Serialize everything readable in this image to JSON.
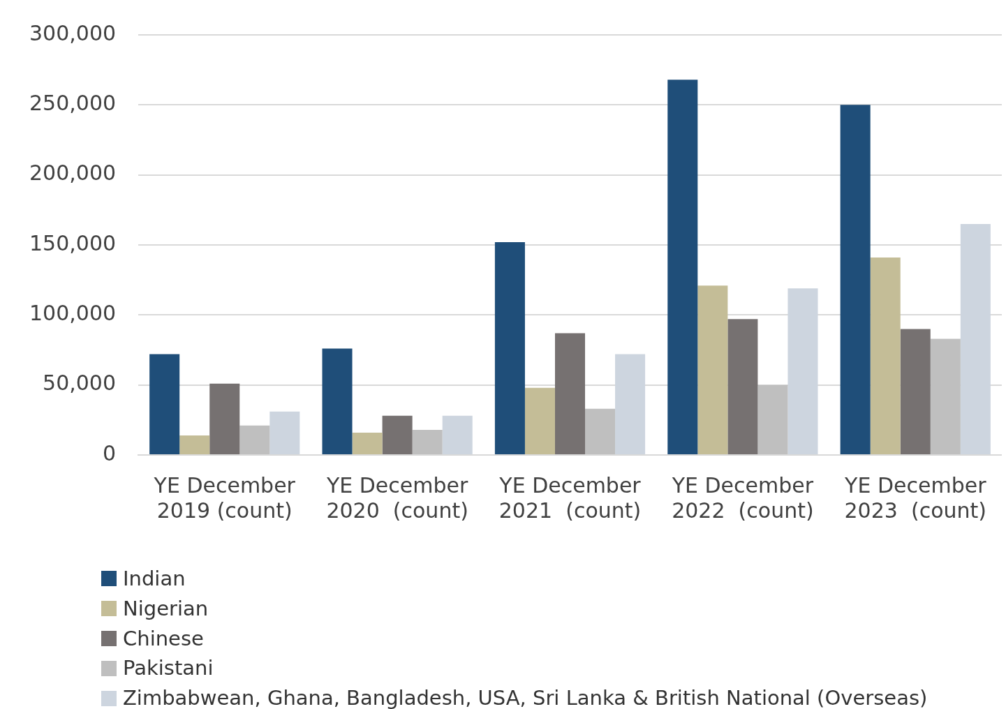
{
  "chart_data": {
    "type": "bar",
    "categories": [
      "YE December 2019 (count)",
      "YE December 2020  (count)",
      "YE December 2021  (count)",
      "YE December 2022  (count)",
      "YE December 2023  (count)"
    ],
    "series": [
      {
        "name": "Indian",
        "color": "#1f4e79",
        "values": [
          72000,
          76000,
          152000,
          268000,
          250000
        ]
      },
      {
        "name": "Nigerian",
        "color": "#c4bd97",
        "values": [
          14000,
          16000,
          48000,
          121000,
          141000
        ]
      },
      {
        "name": "Chinese",
        "color": "#767171",
        "values": [
          51000,
          28000,
          87000,
          97000,
          90000
        ]
      },
      {
        "name": "Pakistani",
        "color": "#bfbfbf",
        "values": [
          21000,
          18000,
          33000,
          50000,
          83000
        ]
      },
      {
        "name": "Zimbabwean, Ghana, Bangladesh, USA, Sri Lanka & British National (Overseas)",
        "color": "#cdd5df",
        "values": [
          31000,
          28000,
          72000,
          119000,
          165000
        ]
      }
    ],
    "ylim": [
      0,
      300000
    ],
    "yticks": [
      {
        "value": 0,
        "label": "0"
      },
      {
        "value": 50000,
        "label": "50,000"
      },
      {
        "value": 100000,
        "label": "100,000"
      },
      {
        "value": 150000,
        "label": "150,000"
      },
      {
        "value": 200000,
        "label": "200,000"
      },
      {
        "value": 250000,
        "label": "250,000"
      },
      {
        "value": 300000,
        "label": "300,000"
      }
    ],
    "grid": "y",
    "legend": "bottom left"
  }
}
